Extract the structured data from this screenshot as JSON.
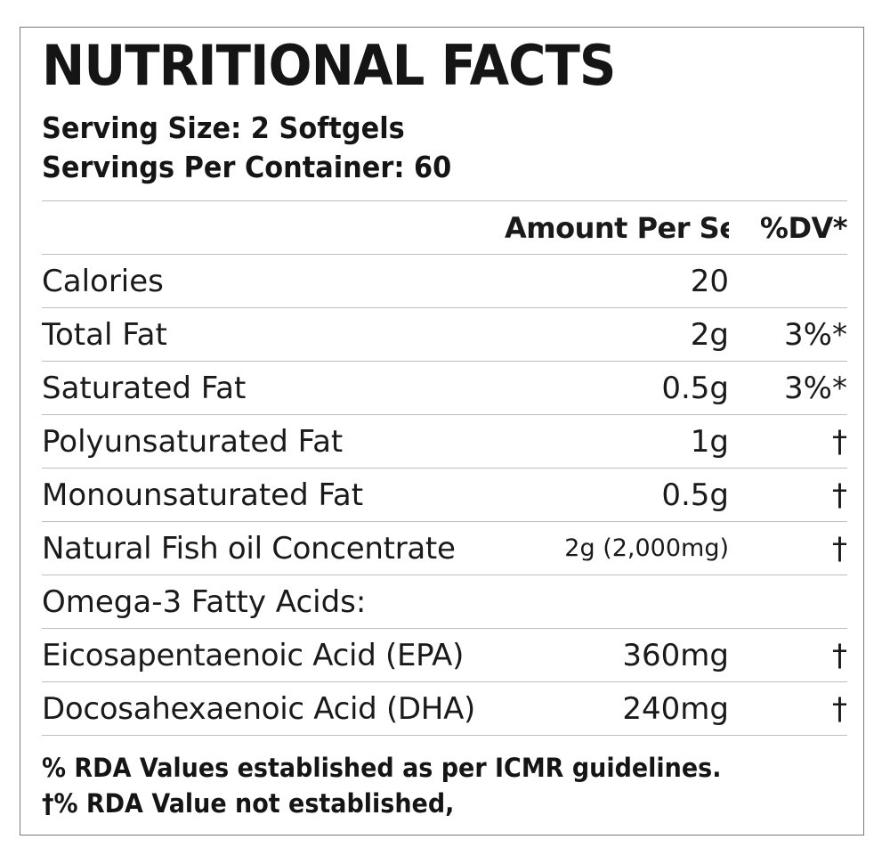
{
  "label": {
    "title": "NUTRITIONAL FACTS",
    "serving_size": "Serving Size: 2 Softgels",
    "servings_per_container": "Servings Per Container: 60"
  },
  "table": {
    "headers": {
      "nutrient": "",
      "amount": "Amount Per Serving",
      "dv": "%DV*"
    },
    "rows": [
      {
        "name": "Calories",
        "amount": "20",
        "dv": ""
      },
      {
        "name": "Total Fat",
        "amount": "2g",
        "dv": "3%*"
      },
      {
        "name": "Saturated Fat",
        "amount": "0.5g",
        "dv": "3%*"
      },
      {
        "name": "Polyunsaturated Fat",
        "amount": "1g",
        "dv": "†"
      },
      {
        "name": "Monounsaturated Fat",
        "amount": "0.5g",
        "dv": "†"
      },
      {
        "name": "Natural Fish oil Concentrate",
        "amount": "2g (2,000mg)",
        "dv": "†"
      },
      {
        "name": "Omega-3 Fatty Acids:",
        "amount": "",
        "dv": ""
      },
      {
        "name": "Eicosapentaenoic Acid (EPA)",
        "amount": "360mg",
        "dv": "†"
      },
      {
        "name": "Docosahexaenoic Acid (DHA)",
        "amount": "240mg",
        "dv": "†"
      }
    ]
  },
  "footer": {
    "line1": "% RDA Values established as per ICMR guidelines.",
    "line2": "†% RDA Value not established,"
  }
}
